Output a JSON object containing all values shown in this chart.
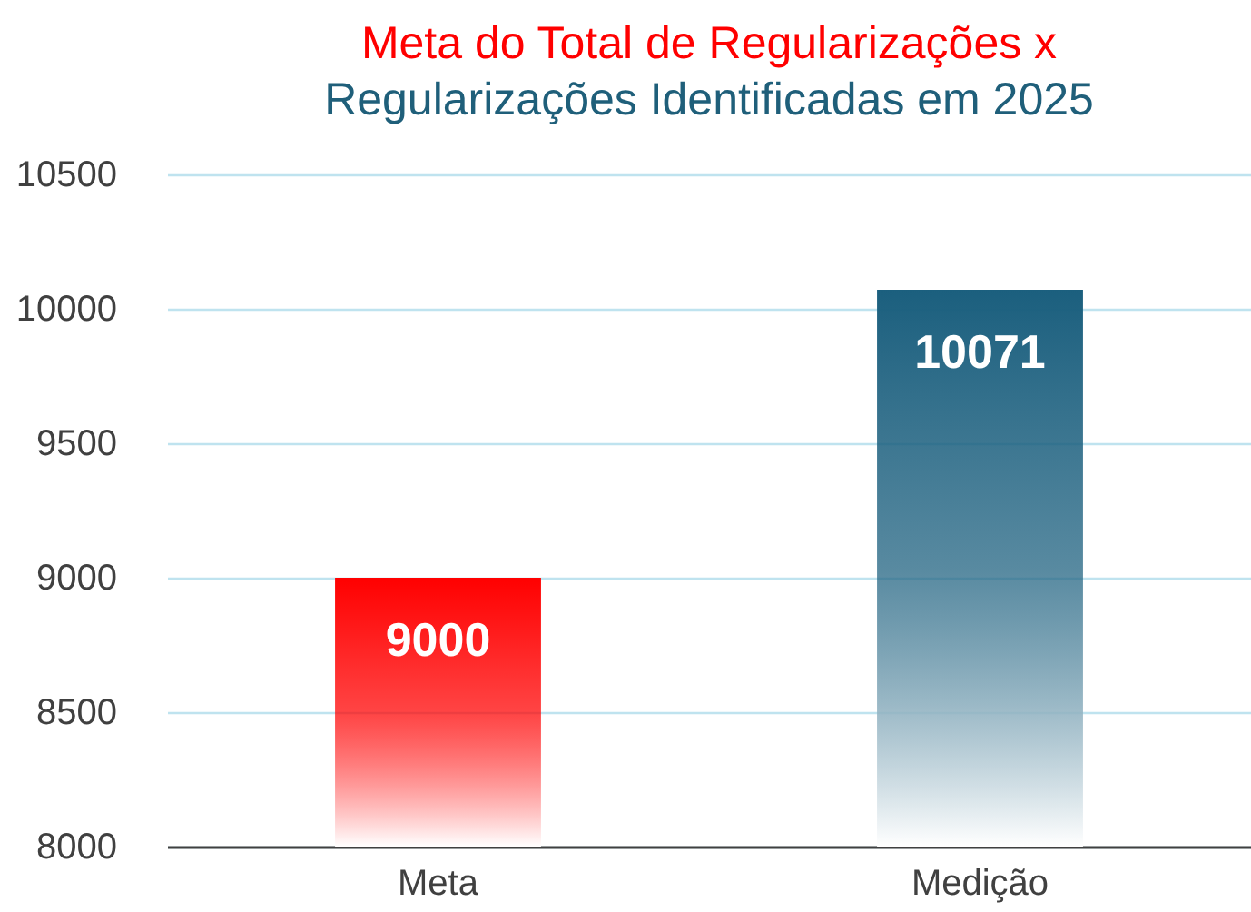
{
  "chart_data": {
    "type": "bar",
    "title": "Meta do Total de Regularizações x",
    "subtitle": "Regularizações Identificadas em 2025",
    "categories": [
      "Meta",
      "Medição"
    ],
    "values": [
      9000,
      10071
    ],
    "colors": [
      "#ff0000",
      "#1b5f7e"
    ],
    "ylim": [
      8000,
      10500
    ],
    "yticks": [
      8000,
      8500,
      9000,
      9500,
      10000,
      10500
    ],
    "grid": "y",
    "data_labels": true
  }
}
